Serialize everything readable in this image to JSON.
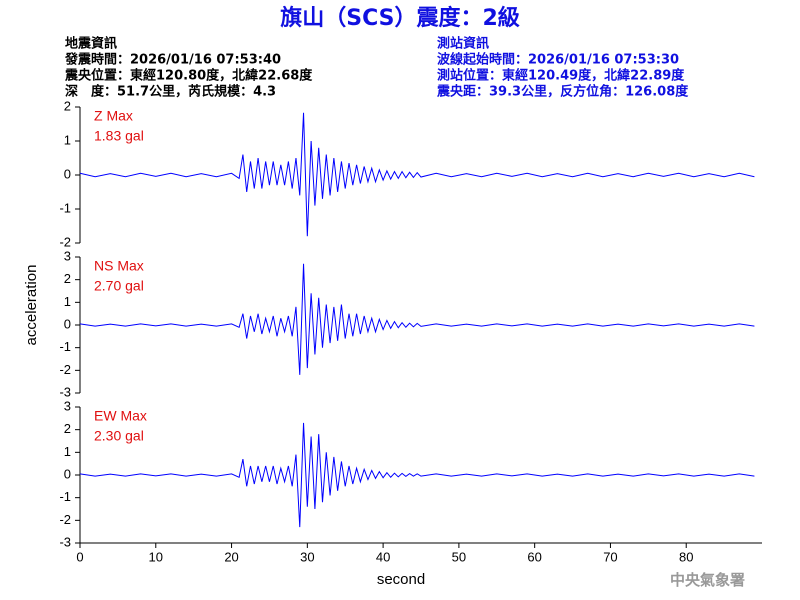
{
  "header": {
    "title": "旗山（SCS）震度：2級",
    "event": [
      "地震資訊",
      "發震時間：2026/01/16 07:53:40",
      "震央位置：東經120.80度，北緯22.68度",
      "深　度：51.7公里，芮氏規模：4.3"
    ],
    "station": [
      "測站資訊",
      "波線起始時間：2026/01/16 07:53:30",
      "測站位置：東經120.49度，北緯22.89度",
      "震央距：39.3公里，反方位角：126.08度"
    ]
  },
  "footer": "中央氣象署",
  "chart_data": [
    {
      "type": "line",
      "label": "Z Max",
      "max_text": "1.83 gal",
      "label_color": "#e01010",
      "color": "#0000ff",
      "xlim": [
        0,
        90
      ],
      "ylim": [
        -2,
        2
      ],
      "yticks": [
        -2,
        -1,
        0,
        1,
        2
      ],
      "x": [
        0,
        2,
        4,
        6,
        8,
        10,
        12,
        14,
        16,
        18,
        20,
        21,
        21.5,
        22,
        22.5,
        23,
        23.5,
        24,
        24.5,
        25,
        25.5,
        26,
        26.5,
        27,
        27.5,
        28,
        28.5,
        29,
        29.5,
        30,
        30.5,
        31,
        31.5,
        32,
        32.5,
        33,
        33.5,
        34,
        34.5,
        35,
        35.5,
        36,
        36.5,
        37,
        37.5,
        38,
        38.5,
        39,
        39.5,
        40,
        40.5,
        41,
        41.5,
        42,
        42.5,
        43,
        43.5,
        44,
        44.5,
        45,
        47,
        49,
        51,
        53,
        55,
        57,
        59,
        61,
        63,
        65,
        67,
        69,
        71,
        73,
        75,
        77,
        79,
        81,
        83,
        85,
        87,
        89
      ],
      "values": [
        0.05,
        -0.05,
        0.04,
        -0.05,
        0.05,
        -0.04,
        0.05,
        -0.05,
        0.04,
        -0.05,
        0.05,
        -0.1,
        0.6,
        -0.5,
        0.4,
        -0.4,
        0.5,
        -0.4,
        0.4,
        -0.3,
        0.4,
        -0.3,
        0.3,
        -0.3,
        0.4,
        -0.4,
        0.5,
        -0.6,
        1.83,
        -1.8,
        1.0,
        -0.9,
        0.8,
        -0.7,
        0.6,
        -0.6,
        0.5,
        -0.5,
        0.4,
        -0.4,
        0.35,
        -0.3,
        0.3,
        -0.25,
        0.25,
        -0.2,
        0.2,
        -0.2,
        0.15,
        -0.15,
        0.12,
        -0.12,
        0.1,
        -0.1,
        0.1,
        -0.08,
        0.08,
        -0.07,
        0.07,
        -0.06,
        0.05,
        -0.05,
        0.04,
        -0.05,
        0.05,
        -0.04,
        0.05,
        -0.05,
        0.04,
        -0.05,
        0.05,
        -0.05,
        0.04,
        -0.05,
        0.05,
        -0.04,
        0.05,
        -0.05,
        0.04,
        -0.05,
        0.05,
        -0.05
      ]
    },
    {
      "type": "line",
      "label": "NS Max",
      "max_text": "2.70 gal",
      "label_color": "#e01010",
      "color": "#0000ff",
      "ylabel": "acceleration",
      "xlim": [
        0,
        90
      ],
      "ylim": [
        -3,
        3
      ],
      "yticks": [
        -3,
        -2,
        -1,
        0,
        1,
        2,
        3
      ],
      "x": [
        0,
        2,
        4,
        6,
        8,
        10,
        12,
        14,
        16,
        18,
        20,
        21,
        21.5,
        22,
        22.5,
        23,
        23.5,
        24,
        24.5,
        25,
        25.5,
        26,
        26.5,
        27,
        27.5,
        28,
        28.5,
        29,
        29.5,
        30,
        30.5,
        31,
        31.5,
        32,
        32.5,
        33,
        33.5,
        34,
        34.5,
        35,
        35.5,
        36,
        36.5,
        37,
        37.5,
        38,
        38.5,
        39,
        39.5,
        40,
        40.5,
        41,
        41.5,
        42,
        42.5,
        43,
        43.5,
        44,
        44.5,
        45,
        47,
        49,
        51,
        53,
        55,
        57,
        59,
        61,
        63,
        65,
        67,
        69,
        71,
        73,
        75,
        77,
        79,
        81,
        83,
        85,
        87,
        89
      ],
      "values": [
        0.05,
        -0.05,
        0.04,
        -0.05,
        0.05,
        -0.04,
        0.05,
        -0.05,
        0.04,
        -0.05,
        0.05,
        -0.1,
        0.5,
        -0.6,
        0.4,
        -0.3,
        0.5,
        -0.4,
        0.3,
        -0.3,
        0.4,
        -0.5,
        0.3,
        -0.3,
        0.4,
        -0.5,
        0.8,
        -2.2,
        2.7,
        -1.9,
        1.4,
        -1.3,
        1.2,
        -1.0,
        0.9,
        -0.8,
        0.8,
        -0.7,
        0.9,
        -0.6,
        0.5,
        -0.5,
        0.5,
        -0.4,
        0.4,
        -0.3,
        0.3,
        -0.3,
        0.25,
        -0.2,
        0.2,
        -0.15,
        0.15,
        -0.12,
        0.1,
        -0.1,
        0.08,
        -0.08,
        0.07,
        -0.06,
        0.05,
        -0.05,
        0.04,
        -0.05,
        0.05,
        -0.04,
        0.05,
        -0.05,
        0.04,
        -0.05,
        0.05,
        -0.05,
        0.04,
        -0.05,
        0.05,
        -0.04,
        0.05,
        -0.05,
        0.04,
        -0.05,
        0.05,
        -0.05
      ]
    },
    {
      "type": "line",
      "label": "EW Max",
      "max_text": "2.30 gal",
      "label_color": "#e01010",
      "color": "#0000ff",
      "xlabel": "second",
      "xlim": [
        0,
        90
      ],
      "xticks": [
        0,
        10,
        20,
        30,
        40,
        50,
        60,
        70,
        80
      ],
      "ylim": [
        -3,
        3
      ],
      "yticks": [
        -3,
        -2,
        -1,
        0,
        1,
        2,
        3
      ],
      "x": [
        0,
        2,
        4,
        6,
        8,
        10,
        12,
        14,
        16,
        18,
        20,
        21,
        21.5,
        22,
        22.5,
        23,
        23.5,
        24,
        24.5,
        25,
        25.5,
        26,
        26.5,
        27,
        27.5,
        28,
        28.5,
        29,
        29.5,
        30,
        30.5,
        31,
        31.5,
        32,
        32.5,
        33,
        33.5,
        34,
        34.5,
        35,
        35.5,
        36,
        36.5,
        37,
        37.5,
        38,
        38.5,
        39,
        39.5,
        40,
        40.5,
        41,
        41.5,
        42,
        42.5,
        43,
        43.5,
        44,
        44.5,
        45,
        47,
        49,
        51,
        53,
        55,
        57,
        59,
        61,
        63,
        65,
        67,
        69,
        71,
        73,
        75,
        77,
        79,
        81,
        83,
        85,
        87,
        89
      ],
      "values": [
        0.05,
        -0.05,
        0.04,
        -0.05,
        0.05,
        -0.04,
        0.05,
        -0.05,
        0.04,
        -0.05,
        0.05,
        -0.1,
        0.7,
        -0.5,
        0.4,
        -0.4,
        0.4,
        -0.3,
        0.4,
        -0.3,
        0.4,
        -0.4,
        0.3,
        -0.3,
        0.4,
        -0.5,
        0.9,
        -2.3,
        2.3,
        -1.4,
        1.7,
        -1.5,
        1.8,
        -1.2,
        1.0,
        -0.9,
        0.8,
        -0.7,
        0.6,
        -0.5,
        0.4,
        -0.4,
        0.3,
        -0.3,
        0.25,
        -0.2,
        0.2,
        -0.15,
        0.15,
        -0.12,
        0.1,
        -0.1,
        0.08,
        -0.08,
        0.07,
        -0.06,
        0.06,
        -0.05,
        0.05,
        -0.05,
        0.05,
        -0.05,
        0.04,
        -0.05,
        0.05,
        -0.04,
        0.05,
        -0.05,
        0.04,
        -0.05,
        0.05,
        -0.05,
        0.04,
        -0.05,
        0.05,
        -0.04,
        0.05,
        -0.05,
        0.04,
        -0.05,
        0.05,
        -0.05
      ]
    }
  ]
}
